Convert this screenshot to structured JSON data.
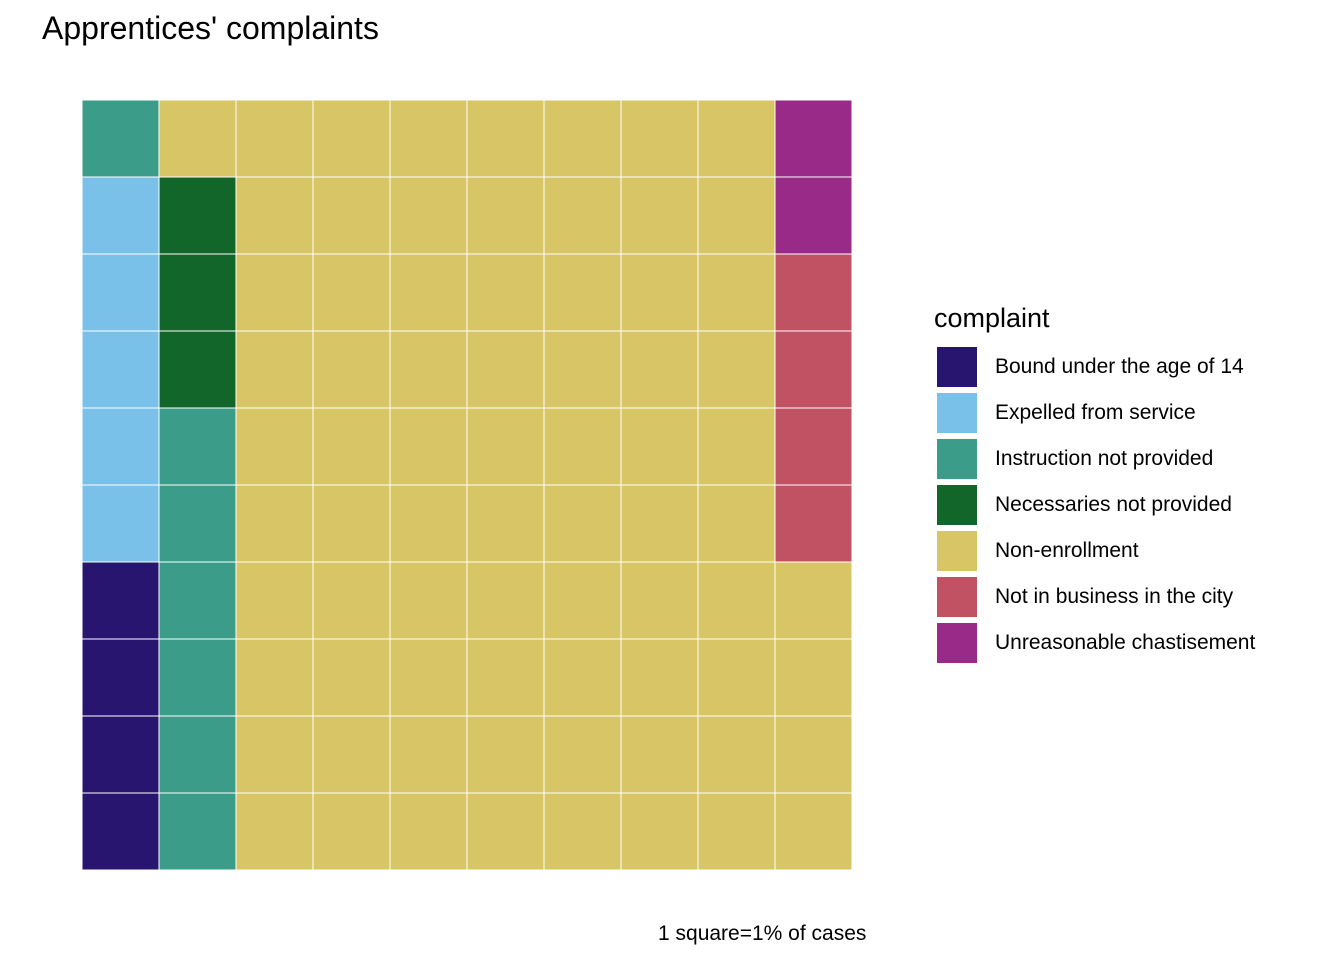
{
  "title": "Apprentices' complaints",
  "caption": "1 square=1% of cases",
  "legend": {
    "title": "complaint",
    "placement": "right",
    "items": [
      {
        "label": "Bound under the age of 14",
        "color": "#27156F"
      },
      {
        "label": "Expelled from service",
        "color": "#7AC1EA"
      },
      {
        "label": "Instruction not provided",
        "color": "#3B9D89"
      },
      {
        "label": "Necessaries not provided",
        "color": "#136629"
      },
      {
        "label": "Non-enrollment",
        "color": "#D7C566"
      },
      {
        "label": "Not in business in the city",
        "color": "#C05263"
      },
      {
        "label": "Unreasonable chastisement",
        "color": "#992A88"
      }
    ]
  },
  "chart_data": {
    "type": "waffle",
    "rows": 10,
    "cols": 10,
    "fill_order": "column-major, starting bottom-left, filling upward",
    "categories": [
      "Bound under the age of 14",
      "Expelled from service",
      "Instruction not provided",
      "Necessaries not provided",
      "Non-enrollment",
      "Not in business in the city",
      "Unreasonable chastisement"
    ],
    "values": [
      4,
      5,
      7,
      3,
      75,
      4,
      2
    ],
    "colors": [
      "#27156F",
      "#7AC1EA",
      "#3B9D89",
      "#136629",
      "#D7C566",
      "#C05263",
      "#992A88"
    ],
    "grid": false,
    "axes": false
  }
}
